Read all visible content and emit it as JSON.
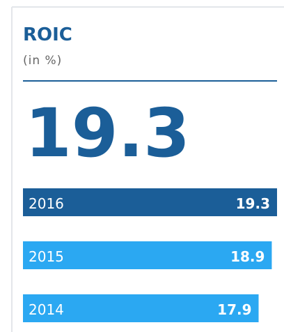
{
  "chart_data": {
    "type": "hbar",
    "title": "ROIC",
    "subtitle": "(in %)",
    "categories": [
      "2016",
      "2015",
      "2014"
    ],
    "values": [
      19.3,
      18.9,
      17.9
    ],
    "colors": [
      "#1b5e98",
      "#2ba8f2",
      "#2ba8f2"
    ]
  }
}
